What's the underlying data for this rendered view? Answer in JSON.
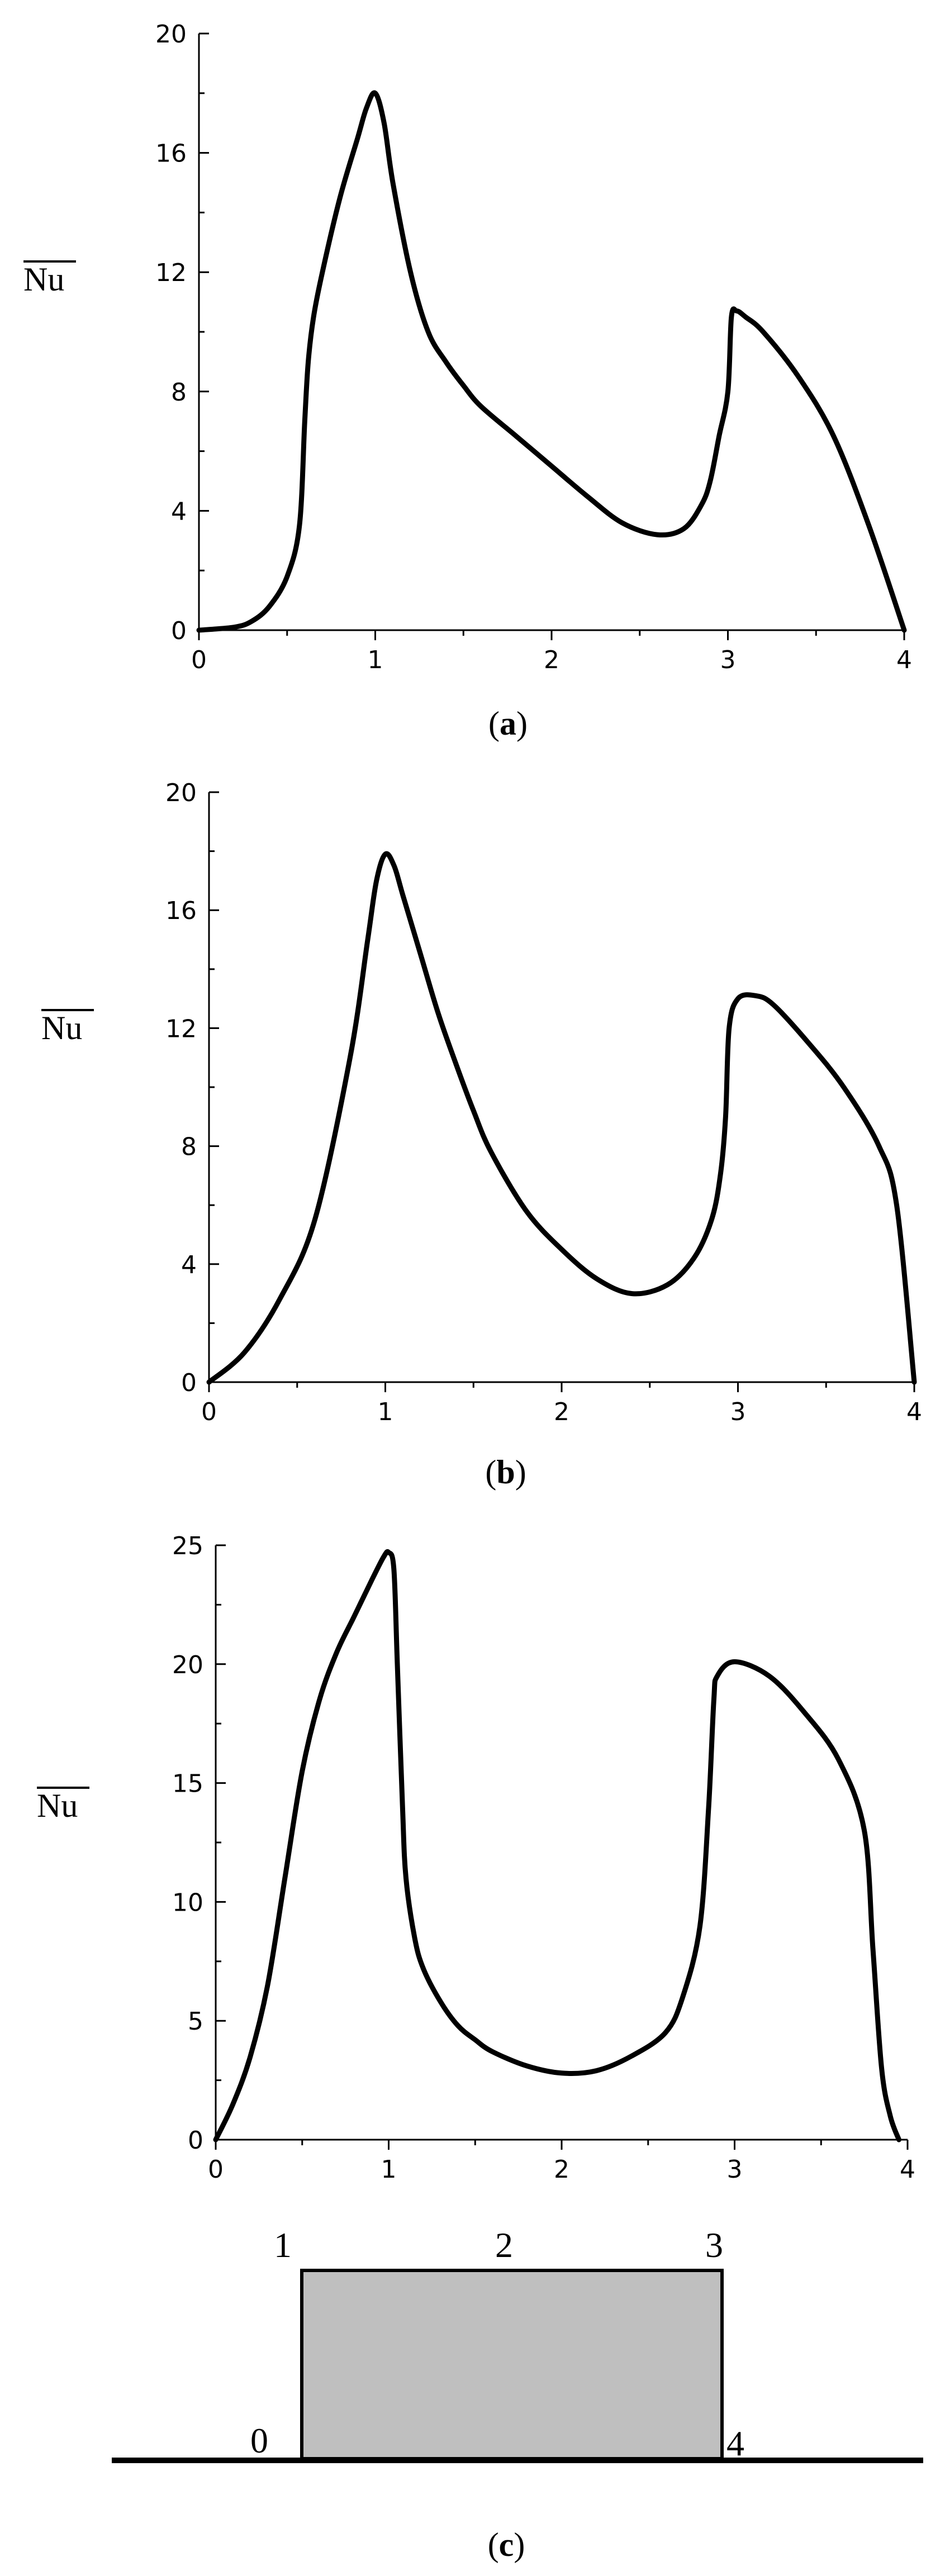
{
  "chart_data": [
    {
      "type": "line",
      "caption_open": "(",
      "caption_letter": "a",
      "caption_close": ")",
      "ylabel": "Nu",
      "xlabel": "",
      "xlim": [
        0,
        4
      ],
      "ylim": [
        0,
        20
      ],
      "xticks": [
        0,
        1,
        2,
        3,
        4
      ],
      "yticks": [
        0,
        4,
        8,
        12,
        16,
        20
      ],
      "grid": false,
      "series": [
        {
          "x": [
            0,
            0.2,
            0.3,
            0.4,
            0.5,
            0.57,
            0.6,
            0.62,
            0.65,
            0.7,
            0.8,
            0.9,
            0.95,
            1.0,
            1.05,
            1.1,
            1.2,
            1.3,
            1.4,
            1.5,
            1.6,
            1.8,
            2.0,
            2.2,
            2.4,
            2.6,
            2.75,
            2.85,
            2.9,
            2.95,
            3.0,
            3.02,
            3.05,
            3.1,
            3.2,
            3.4,
            3.6,
            3.8,
            4.0
          ],
          "y": [
            0,
            0.1,
            0.3,
            0.8,
            1.8,
            3.5,
            7.0,
            9.0,
            10.5,
            12.0,
            14.5,
            16.5,
            17.5,
            18.0,
            17.0,
            15.0,
            12.0,
            10.0,
            9.0,
            8.2,
            7.5,
            6.5,
            5.5,
            4.5,
            3.6,
            3.2,
            3.4,
            4.2,
            5.0,
            6.5,
            8.0,
            10.5,
            10.7,
            10.5,
            10.0,
            8.5,
            6.5,
            3.5,
            0
          ]
        }
      ]
    },
    {
      "type": "line",
      "caption_open": "(",
      "caption_letter": "b",
      "caption_close": ")",
      "ylabel": "Nu",
      "xlabel": "",
      "xlim": [
        0,
        4
      ],
      "ylim": [
        0,
        20
      ],
      "xticks": [
        0,
        1,
        2,
        3,
        4
      ],
      "yticks": [
        0,
        4,
        8,
        12,
        16,
        20
      ],
      "grid": false,
      "series": [
        {
          "x": [
            0,
            0.2,
            0.4,
            0.6,
            0.8,
            0.9,
            0.95,
            1.0,
            1.05,
            1.1,
            1.2,
            1.3,
            1.4,
            1.5,
            1.6,
            1.8,
            2.0,
            2.2,
            2.4,
            2.6,
            2.75,
            2.85,
            2.9,
            2.93,
            2.95,
            3.0,
            3.1,
            3.2,
            3.4,
            3.6,
            3.8,
            3.9,
            4.0
          ],
          "y": [
            0,
            1.0,
            2.8,
            5.5,
            11.0,
            15.0,
            17.0,
            17.9,
            17.5,
            16.5,
            14.5,
            12.5,
            10.8,
            9.2,
            7.8,
            5.8,
            4.5,
            3.5,
            3.0,
            3.3,
            4.2,
            5.5,
            7.0,
            9.0,
            12.0,
            13.0,
            13.1,
            12.8,
            11.5,
            10.0,
            8.0,
            6.0,
            0
          ]
        }
      ]
    },
    {
      "type": "line",
      "caption_open": "(",
      "caption_letter": "c",
      "caption_close": ")",
      "ylabel": "Nu",
      "xlabel": "",
      "xlim": [
        0,
        4
      ],
      "ylim": [
        0,
        25
      ],
      "xticks": [
        0,
        1,
        2,
        3,
        4
      ],
      "yticks": [
        0,
        5,
        10,
        15,
        20,
        25
      ],
      "grid": false,
      "series": [
        {
          "x": [
            0,
            0.1,
            0.2,
            0.3,
            0.4,
            0.5,
            0.6,
            0.7,
            0.8,
            0.9,
            0.97,
            1.0,
            1.03,
            1.05,
            1.08,
            1.1,
            1.15,
            1.2,
            1.3,
            1.4,
            1.5,
            1.6,
            1.8,
            2.0,
            2.2,
            2.4,
            2.6,
            2.7,
            2.8,
            2.85,
            2.88,
            2.9,
            3.0,
            3.2,
            3.4,
            3.6,
            3.75,
            3.8,
            3.85,
            3.9,
            3.95
          ],
          "y": [
            0,
            1.5,
            3.5,
            6.5,
            11.0,
            15.5,
            18.5,
            20.5,
            22.0,
            23.5,
            24.5,
            24.7,
            24.0,
            20.0,
            14.0,
            11.0,
            8.5,
            7.2,
            5.8,
            4.8,
            4.2,
            3.7,
            3.1,
            2.8,
            2.9,
            3.5,
            4.5,
            6.0,
            9.0,
            14.0,
            18.5,
            19.5,
            20.1,
            19.5,
            18.0,
            16.0,
            13.0,
            8.0,
            3.0,
            1.0,
            0
          ]
        }
      ]
    }
  ],
  "diagram": {
    "corner_labels": [
      "0",
      "1",
      "2",
      "3",
      "4"
    ],
    "block_fill": "#bfbfbf"
  },
  "colors": {
    "line": "#000000",
    "background": "#ffffff"
  }
}
